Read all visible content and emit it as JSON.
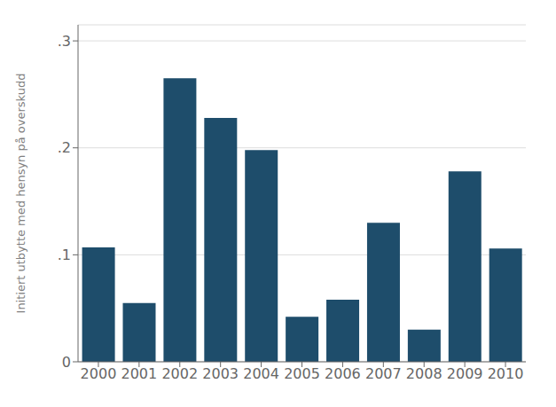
{
  "chart_data": {
    "type": "bar",
    "categories": [
      "2000",
      "2001",
      "2002",
      "2003",
      "2004",
      "2005",
      "2006",
      "2007",
      "2008",
      "2009",
      "2010"
    ],
    "values": [
      0.107,
      0.055,
      0.265,
      0.228,
      0.198,
      0.042,
      0.058,
      0.13,
      0.03,
      0.178,
      0.106
    ],
    "color": "#1e4d6b",
    "ylabel": "Initiert utbytte med hensyn på overskudd",
    "ylim": [
      0,
      0.315
    ],
    "yticks": [
      0,
      {
        "value": 0.1,
        "label": ".1"
      },
      {
        "value": 0.2,
        "label": ".2"
      },
      {
        "value": 0.3,
        "label": ".3"
      }
    ],
    "grid": true
  }
}
